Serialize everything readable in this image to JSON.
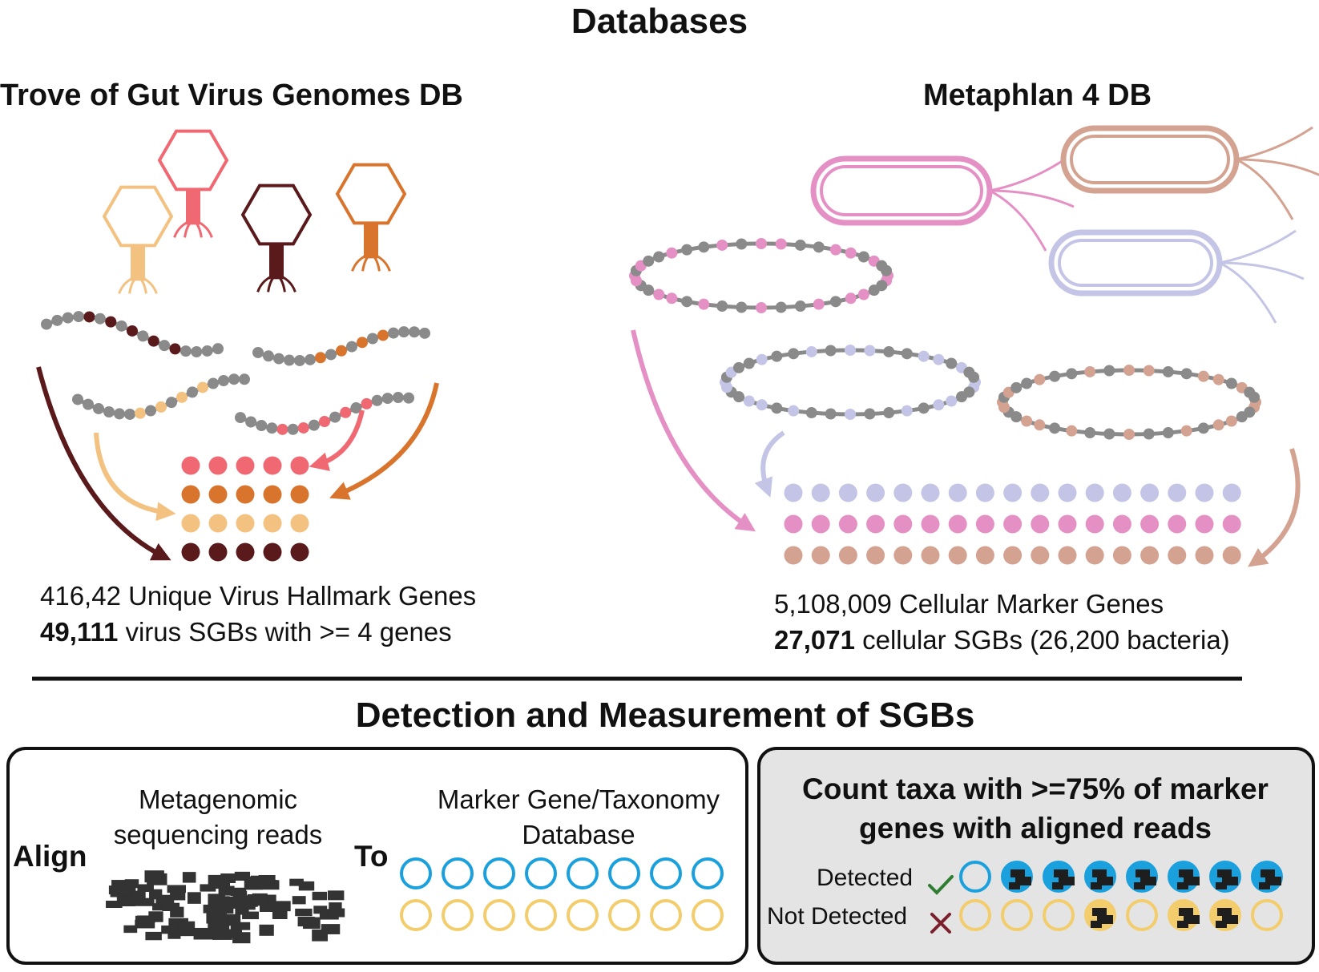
{
  "title": "Databases",
  "virus_db": {
    "heading": "Trove of Gut Virus Genomes DB",
    "stat_line1": "416,42 Unique Virus Hallmark Genes",
    "stat_line2_bold": "49,111",
    "stat_line2_rest": " virus SGBs with >= 4 genes",
    "phage_colors": [
      "#f3c180",
      "#ef6872",
      "#5a1a1c",
      "#d9742d"
    ],
    "gene_grid_rows": 4,
    "gene_grid_cols": 5
  },
  "cell_db": {
    "heading": "Metaphlan 4 DB",
    "stat_line1": "5,108,009 Cellular Marker Genes",
    "stat_line2_bold": "27,071",
    "stat_line2_rest": " cellular SGBs (26,200 bacteria)",
    "bacteria_colors": [
      "#e590c5",
      "#d4a291",
      "#c4c5e6"
    ],
    "marker_rows": 3,
    "marker_cols": 17
  },
  "section2_title": "Detection and Measurement of SGBs",
  "align_panel": {
    "align_word": "Align",
    "reads_label": "Metagenomic sequencing reads",
    "to_word": "To",
    "db_label": "Marker Gene/Taxonomy Database",
    "ring_colors": [
      "#1aa0dc",
      "#f3cd6b"
    ],
    "ring_count": 8
  },
  "count_panel": {
    "heading": "Count taxa with >=75% of marker genes with aligned reads",
    "detected_label": "Detected",
    "not_detected_label": "Not Detected",
    "detected_icon": "check-icon",
    "not_detected_icon": "cross-icon",
    "detected_fill": [
      0,
      1,
      1,
      1,
      1,
      1,
      1,
      1
    ],
    "not_detected_fill": [
      0,
      0,
      0,
      1,
      0,
      1,
      1,
      0
    ]
  }
}
